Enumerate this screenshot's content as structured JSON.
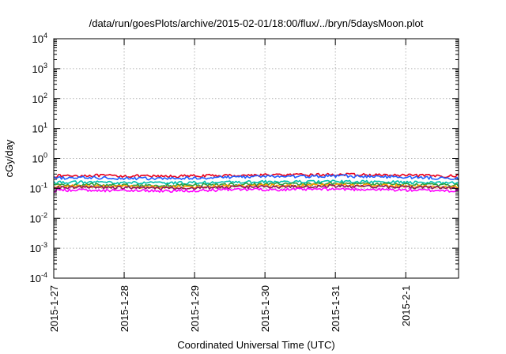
{
  "chart_data": {
    "type": "line",
    "title": "/data/run/goesPlots/archive/2015-02-01/18:00/flux/../bryn/5daysMoon.plot",
    "xlabel": "Coordinated Universal Time (UTC)",
    "ylabel": "cGy/day",
    "yscale": "log",
    "ylim": [
      0.0001,
      10000
    ],
    "xlim": [
      "2015-01-27",
      "2015-02-01T18:00"
    ],
    "grid": true,
    "legend": "none",
    "x_ticks": [
      "2015-1-27",
      "2015-1-28",
      "2015-1-29",
      "2015-1-30",
      "2015-1-31",
      "2015-2-1"
    ],
    "y_ticks": [
      {
        "base": "10",
        "exp": "-4"
      },
      {
        "base": "10",
        "exp": "-3"
      },
      {
        "base": "10",
        "exp": "-2"
      },
      {
        "base": "10",
        "exp": "-1"
      },
      {
        "base": "10",
        "exp": "0"
      },
      {
        "base": "10",
        "exp": "1"
      },
      {
        "base": "10",
        "exp": "2"
      },
      {
        "base": "10",
        "exp": "3"
      },
      {
        "base": "10",
        "exp": "4"
      }
    ],
    "x": [
      "2015-01-27T00:00",
      "2015-01-27T12:00",
      "2015-01-28T00:00",
      "2015-01-28T12:00",
      "2015-01-29T00:00",
      "2015-01-29T12:00",
      "2015-01-30T00:00",
      "2015-01-30T12:00",
      "2015-01-31T00:00",
      "2015-01-31T12:00",
      "2015-02-01T00:00",
      "2015-02-01T12:00",
      "2015-02-01T18:00"
    ],
    "series": [
      {
        "color": "#e8001c",
        "values": [
          0.26,
          0.27,
          0.26,
          0.25,
          0.26,
          0.27,
          0.28,
          0.28,
          0.29,
          0.28,
          0.27,
          0.26,
          0.26
        ]
      },
      {
        "color": "#1f5fff",
        "values": [
          0.22,
          0.23,
          0.22,
          0.21,
          0.22,
          0.24,
          0.25,
          0.25,
          0.26,
          0.25,
          0.24,
          0.22,
          0.21
        ]
      },
      {
        "color": "#00c0b0",
        "values": [
          0.16,
          0.16,
          0.155,
          0.15,
          0.155,
          0.16,
          0.165,
          0.165,
          0.17,
          0.165,
          0.16,
          0.155,
          0.15
        ]
      },
      {
        "color": "#2e9f3e",
        "values": [
          0.13,
          0.135,
          0.13,
          0.125,
          0.13,
          0.135,
          0.14,
          0.14,
          0.145,
          0.14,
          0.135,
          0.13,
          0.125
        ]
      },
      {
        "color": "#ff9a00",
        "values": [
          0.115,
          0.12,
          0.115,
          0.11,
          0.115,
          0.12,
          0.125,
          0.125,
          0.13,
          0.125,
          0.12,
          0.115,
          0.11
        ]
      },
      {
        "color": "#8a1a5a",
        "values": [
          0.105,
          0.11,
          0.105,
          0.1,
          0.105,
          0.11,
          0.115,
          0.115,
          0.12,
          0.115,
          0.11,
          0.105,
          0.1
        ]
      },
      {
        "color": "#ff00ff",
        "values": [
          0.085,
          0.088,
          0.085,
          0.082,
          0.085,
          0.09,
          0.092,
          0.092,
          0.095,
          0.092,
          0.088,
          0.085,
          0.082
        ]
      }
    ]
  }
}
